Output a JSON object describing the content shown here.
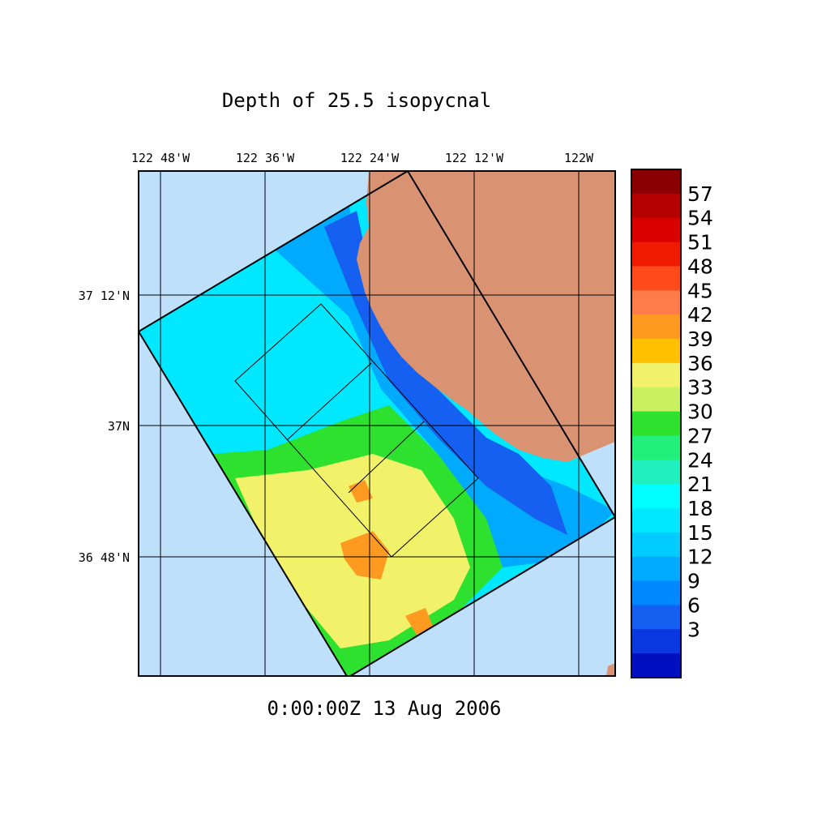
{
  "title": "Depth of 25.5 isopycnal",
  "timestamp": "0:00:00Z  13 Aug 2006",
  "lon_labels": [
    "122 48'W",
    "122 36'W",
    "122 24'W",
    "122 12'W",
    "122W"
  ],
  "lat_labels": [
    "37 12'N",
    "37N",
    "36 48'N"
  ],
  "colorbar": {
    "labels": [
      "57",
      "54",
      "51",
      "48",
      "45",
      "42",
      "39",
      "36",
      "33",
      "30",
      "27",
      "24",
      "21",
      "18",
      "15",
      "12",
      "9",
      "6",
      "3"
    ],
    "colors_top_to_bottom": [
      "#8a0000",
      "#b50000",
      "#d90000",
      "#f01a00",
      "#ff4a1a",
      "#ff7b4a",
      "#ff9a20",
      "#ffc000",
      "#f2f26a",
      "#c8f060",
      "#2ee12e",
      "#22f07a",
      "#20f0c0",
      "#00ffff",
      "#00e8ff",
      "#00ccff",
      "#00aaff",
      "#0088ff",
      "#1560f0",
      "#0a38e0",
      "#0010c0"
    ]
  },
  "colors": {
    "ocean": "#bfe0fb",
    "land": "#d99373",
    "deep_blue": "#1560f0",
    "mid_blue": "#00aaff",
    "cyan": "#00e8ff",
    "green": "#2ee12e",
    "yellow": "#f2f26a",
    "orange": "#ff9a20"
  }
}
